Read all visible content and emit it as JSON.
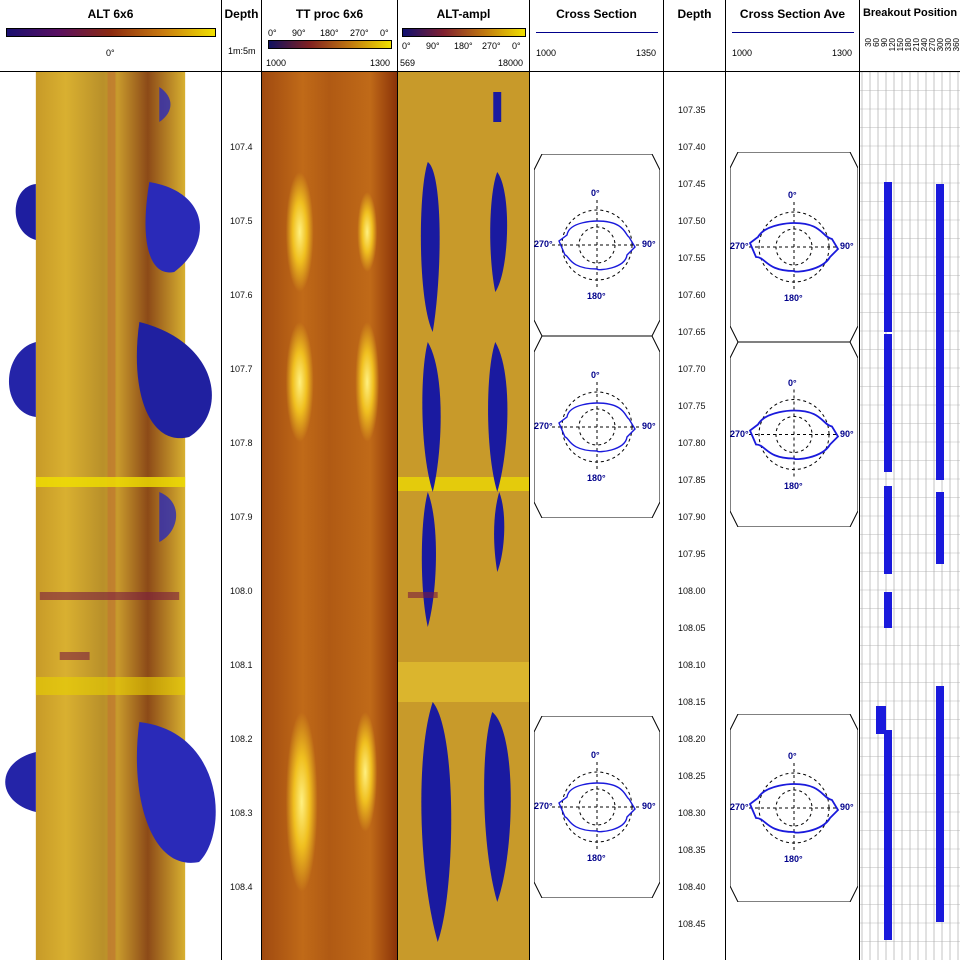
{
  "tracks": {
    "alt6x6": {
      "title": "ALT 6x6",
      "zero_label": "0°"
    },
    "depth1": {
      "title": "Depth",
      "scale": "1m:5m"
    },
    "ttproc": {
      "title": "TT proc 6x6",
      "angles": [
        "0°",
        "90°",
        "180°",
        "270°",
        "0°"
      ],
      "min": "1000",
      "max": "1300"
    },
    "altampl": {
      "title": "ALT-ampl",
      "angles": [
        "0°",
        "90°",
        "180°",
        "270°",
        "0°"
      ],
      "min": "569",
      "max": "18000"
    },
    "cross": {
      "title": "Cross Section",
      "min": "1000",
      "max": "1350"
    },
    "depth2": {
      "title": "Depth"
    },
    "crossave": {
      "title": "Cross Section Ave",
      "min": "1000",
      "max": "1300"
    },
    "breakout": {
      "title": "Breakout Position",
      "angles": [
        "30",
        "60",
        "90",
        "120",
        "150",
        "180",
        "210",
        "240",
        "270",
        "300",
        "330",
        "360"
      ]
    }
  },
  "depth1_labels": [
    "107.4",
    "107.5",
    "107.6",
    "107.7",
    "107.8",
    "107.9",
    "108.0",
    "108.1",
    "108.2",
    "108.3",
    "108.4"
  ],
  "depth2_labels": [
    "107.35",
    "107.40",
    "107.45",
    "107.50",
    "107.55",
    "107.60",
    "107.65",
    "107.70",
    "107.75",
    "107.80",
    "107.85",
    "107.90",
    "107.95",
    "108.00",
    "108.05",
    "108.10",
    "108.15",
    "108.20",
    "108.25",
    "108.30",
    "108.35",
    "108.40",
    "108.45"
  ],
  "polar_labels": {
    "top": "0°",
    "right": "90°",
    "bottom": "180°",
    "left": "270°"
  },
  "colors": {
    "blue": "#1a1adc",
    "navy": "#00008b",
    "yellow": "#f2e400",
    "brown": "#8b3a00"
  }
}
